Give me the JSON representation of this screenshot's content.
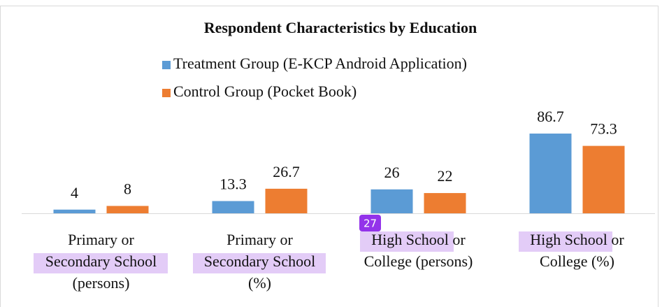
{
  "chart_data": {
    "type": "bar",
    "title": "Respondent Characteristics by Education",
    "categories": [
      [
        "Primary or",
        "Secondary School",
        "(persons)"
      ],
      [
        "Primary or",
        "Secondary School",
        "(%)"
      ],
      [
        "High School or",
        "College (persons)"
      ],
      [
        "High School or",
        "College (%)"
      ]
    ],
    "series": [
      {
        "name": "Treatment Group (E-KCP Android Application)",
        "color": "#5b9bd5",
        "values": [
          4,
          13.3,
          26,
          86.7
        ]
      },
      {
        "name": "Control Group (Pocket Book)",
        "color": "#ed7d31",
        "values": [
          8,
          26.7,
          22,
          73.3
        ]
      }
    ],
    "ylim": [
      0,
      100
    ],
    "annotation": "27"
  }
}
